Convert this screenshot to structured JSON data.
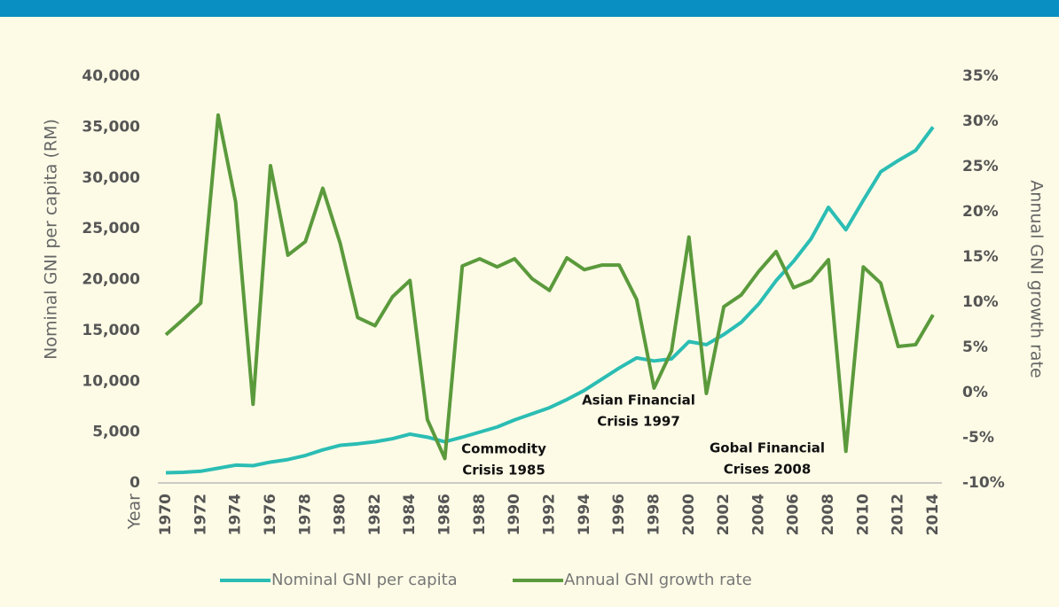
{
  "chart_data": {
    "type": "line",
    "y_label": "Nominal GNI per capita (RM)",
    "y2_label": "Annual GNI growth rate",
    "x_label": "Year",
    "x": [
      1970,
      1971,
      1972,
      1973,
      1974,
      1975,
      1976,
      1977,
      1978,
      1979,
      1980,
      1981,
      1982,
      1983,
      1984,
      1985,
      1986,
      1987,
      1988,
      1989,
      1990,
      1991,
      1992,
      1993,
      1994,
      1995,
      1996,
      1997,
      1998,
      1999,
      2000,
      2001,
      2002,
      2003,
      2004,
      2005,
      2006,
      2007,
      2008,
      2009,
      2010,
      2011,
      2012,
      2013,
      2014
    ],
    "xlim": [
      1970,
      2014
    ],
    "xticks": [
      1970,
      1972,
      1974,
      1976,
      1978,
      1980,
      1982,
      1984,
      1986,
      1988,
      1990,
      1992,
      1994,
      1996,
      1998,
      2000,
      2002,
      2004,
      2006,
      2008,
      2010,
      2012,
      2014
    ],
    "ylim": [
      0,
      40000
    ],
    "yticks": [
      0,
      {
        "value": 5000,
        "label": "5,000"
      },
      {
        "value": 10000,
        "label": "10,000"
      },
      {
        "value": 15000,
        "label": "15,000"
      },
      {
        "value": 20000,
        "label": "20,000"
      },
      {
        "value": 25000,
        "label": "25,000"
      },
      {
        "value": 30000,
        "label": "30,000"
      },
      {
        "value": 35000,
        "label": "35,000"
      },
      {
        "value": 40000,
        "label": "40,000"
      }
    ],
    "y2lim": [
      -10,
      35
    ],
    "y2ticks": [
      {
        "value": -10,
        "label": "-10%"
      },
      {
        "value": -5,
        "label": "-5%"
      },
      {
        "value": 0,
        "label": "0%"
      },
      {
        "value": 5,
        "label": "5%"
      },
      {
        "value": 10,
        "label": "10%"
      },
      {
        "value": 15,
        "label": "15%"
      },
      {
        "value": 20,
        "label": "20%"
      },
      {
        "value": 25,
        "label": "25%"
      },
      {
        "value": 30,
        "label": "30%"
      },
      {
        "value": 35,
        "label": "35%"
      }
    ],
    "series": [
      {
        "name": "Nominal GNI per capita",
        "color": "#2bbdb4",
        "values": [
          1000,
          1050,
          1150,
          1450,
          1750,
          1700,
          2050,
          2300,
          2700,
          3250,
          3700,
          3850,
          4050,
          4350,
          4800,
          4500,
          4050,
          4500,
          5000,
          5500,
          6200,
          6800,
          7400,
          8200,
          9100,
          10200,
          11300,
          12300,
          12000,
          12200,
          13900,
          13600,
          14600,
          15800,
          17600,
          19900,
          21800,
          24000,
          27100,
          24900,
          27800,
          30600,
          31700,
          32700,
          35000
        ]
      },
      {
        "name": "Annual GNI growth rate",
        "color": "#5b9a3c",
        "axis": "y2",
        "values": [
          6.4,
          8.1,
          9.9,
          30.7,
          21.1,
          -1.3,
          25.1,
          15.2,
          16.7,
          22.6,
          16.5,
          8.3,
          7.4,
          10.6,
          12.4,
          -3.0,
          -7.3,
          14.0,
          14.8,
          13.9,
          14.8,
          12.6,
          11.3,
          14.9,
          13.6,
          14.1,
          14.1,
          10.3,
          0.5,
          4.6,
          17.2,
          -0.1,
          9.5,
          10.8,
          13.4,
          15.6,
          11.6,
          12.4,
          14.7,
          -6.5,
          13.9,
          12.1,
          5.1,
          5.3,
          8.6
        ]
      }
    ],
    "annotations": [
      {
        "lines": [
          "Commodity",
          "Crisis 1985"
        ]
      },
      {
        "lines": [
          "Asian Financial",
          "Crisis 1997"
        ]
      },
      {
        "lines": [
          "Gobal Financial",
          "Crises 2008"
        ]
      }
    ],
    "legend": "bottom"
  }
}
